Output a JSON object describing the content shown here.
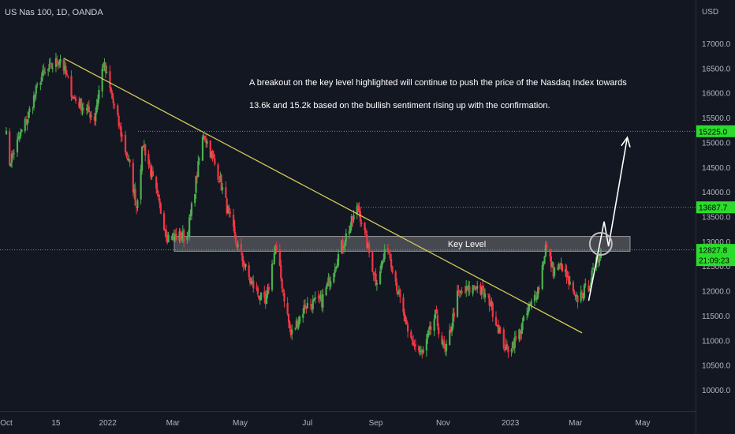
{
  "header": {
    "symbol_line": "US Nas 100, 1D, OANDA",
    "currency": "USD"
  },
  "annotation": {
    "line1": "A breakout on the key level highlighted will continue to push the price of the Nasdaq Index towards",
    "line2": "13.6k and 15.2k based on the bullish sentiment rising up with the confirmation."
  },
  "key_level": {
    "label": "Key Level",
    "low": 12800,
    "high": 13100
  },
  "colors": {
    "background": "#131722",
    "up": "#4caf50",
    "down": "#f23645",
    "trendline": "#d4cc57",
    "level_line": "#4caf50",
    "tag": "#2bdc2b",
    "text": "#d1d4dc",
    "axis_text": "#b2b5be"
  },
  "chart_data": {
    "type": "candlestick",
    "symbol": "US Nas 100",
    "timeframe": "1D",
    "source": "OANDA",
    "y_axis": {
      "ticks": [
        "10000.0",
        "10500.0",
        "11000.0",
        "11500.0",
        "12000.0",
        "12500.0",
        "13000.0",
        "13500.0",
        "14000.0",
        "14500.0",
        "15000.0",
        "15500.0",
        "16000.0",
        "16500.0",
        "17000.0"
      ],
      "range": [
        9700,
        17450
      ]
    },
    "x_axis": {
      "labels": [
        "Oct",
        "15",
        "2022",
        "Mar",
        "May",
        "Jul",
        "Sep",
        "Nov",
        "2023",
        "Mar",
        "May"
      ]
    },
    "price_tags": [
      {
        "label": "15225.0",
        "value": 15225.0,
        "line": true
      },
      {
        "label": "13687.7",
        "value": 13687.7,
        "line": true
      },
      {
        "label": "12827.8",
        "value": 12827.8,
        "line": true,
        "sub": "21:09:23"
      }
    ],
    "levels": [
      15225.0,
      13687.7,
      12827.8
    ],
    "trendline": {
      "from": [
        "2021-11-22",
        16700
      ],
      "to": [
        "2023-03-07",
        11150
      ]
    },
    "path_anchors": [
      [
        "2021-09-30",
        15300
      ],
      [
        "2021-10-04",
        14600
      ],
      [
        "2021-10-20",
        15500
      ],
      [
        "2021-11-01",
        16300
      ],
      [
        "2021-11-19",
        16700
      ],
      [
        "2021-12-01",
        15900
      ],
      [
        "2021-12-20",
        15500
      ],
      [
        "2021-12-28",
        16600
      ],
      [
        "2022-01-07",
        15700
      ],
      [
        "2022-01-21",
        14500
      ],
      [
        "2022-01-27",
        13700
      ],
      [
        "2022-02-02",
        15000
      ],
      [
        "2022-02-24",
        13100
      ],
      [
        "2022-03-14",
        13100
      ],
      [
        "2022-03-29",
        15200
      ],
      [
        "2022-04-12",
        14300
      ],
      [
        "2022-04-27",
        13000
      ],
      [
        "2022-05-10",
        12200
      ],
      [
        "2022-05-24",
        11700
      ],
      [
        "2022-06-02",
        12900
      ],
      [
        "2022-06-16",
        11100
      ],
      [
        "2022-06-29",
        11700
      ],
      [
        "2022-07-14",
        11800
      ],
      [
        "2022-08-01",
        12900
      ],
      [
        "2022-08-16",
        13700
      ],
      [
        "2022-09-01",
        12200
      ],
      [
        "2022-09-12",
        12900
      ],
      [
        "2022-09-30",
        11100
      ],
      [
        "2022-10-13",
        10700
      ],
      [
        "2022-10-25",
        11500
      ],
      [
        "2022-11-03",
        10700
      ],
      [
        "2022-11-14",
        11900
      ],
      [
        "2022-12-01",
        12100
      ],
      [
        "2022-12-13",
        11800
      ],
      [
        "2022-12-28",
        10800
      ],
      [
        "2023-01-06",
        11000
      ],
      [
        "2023-01-27",
        12100
      ],
      [
        "2023-02-02",
        12900
      ],
      [
        "2023-02-09",
        12400
      ],
      [
        "2023-02-17",
        12500
      ],
      [
        "2023-03-01",
        11800
      ],
      [
        "2023-03-13",
        12100
      ],
      [
        "2023-03-24",
        12827.8
      ]
    ],
    "projection": [
      [
        "2023-03-13",
        11800
      ],
      [
        "2023-03-27",
        13400
      ],
      [
        "2023-03-31",
        12900
      ],
      [
        "2023-04-17",
        15100
      ]
    ],
    "breakout_circle": [
      "2023-03-24",
      12950
    ]
  }
}
